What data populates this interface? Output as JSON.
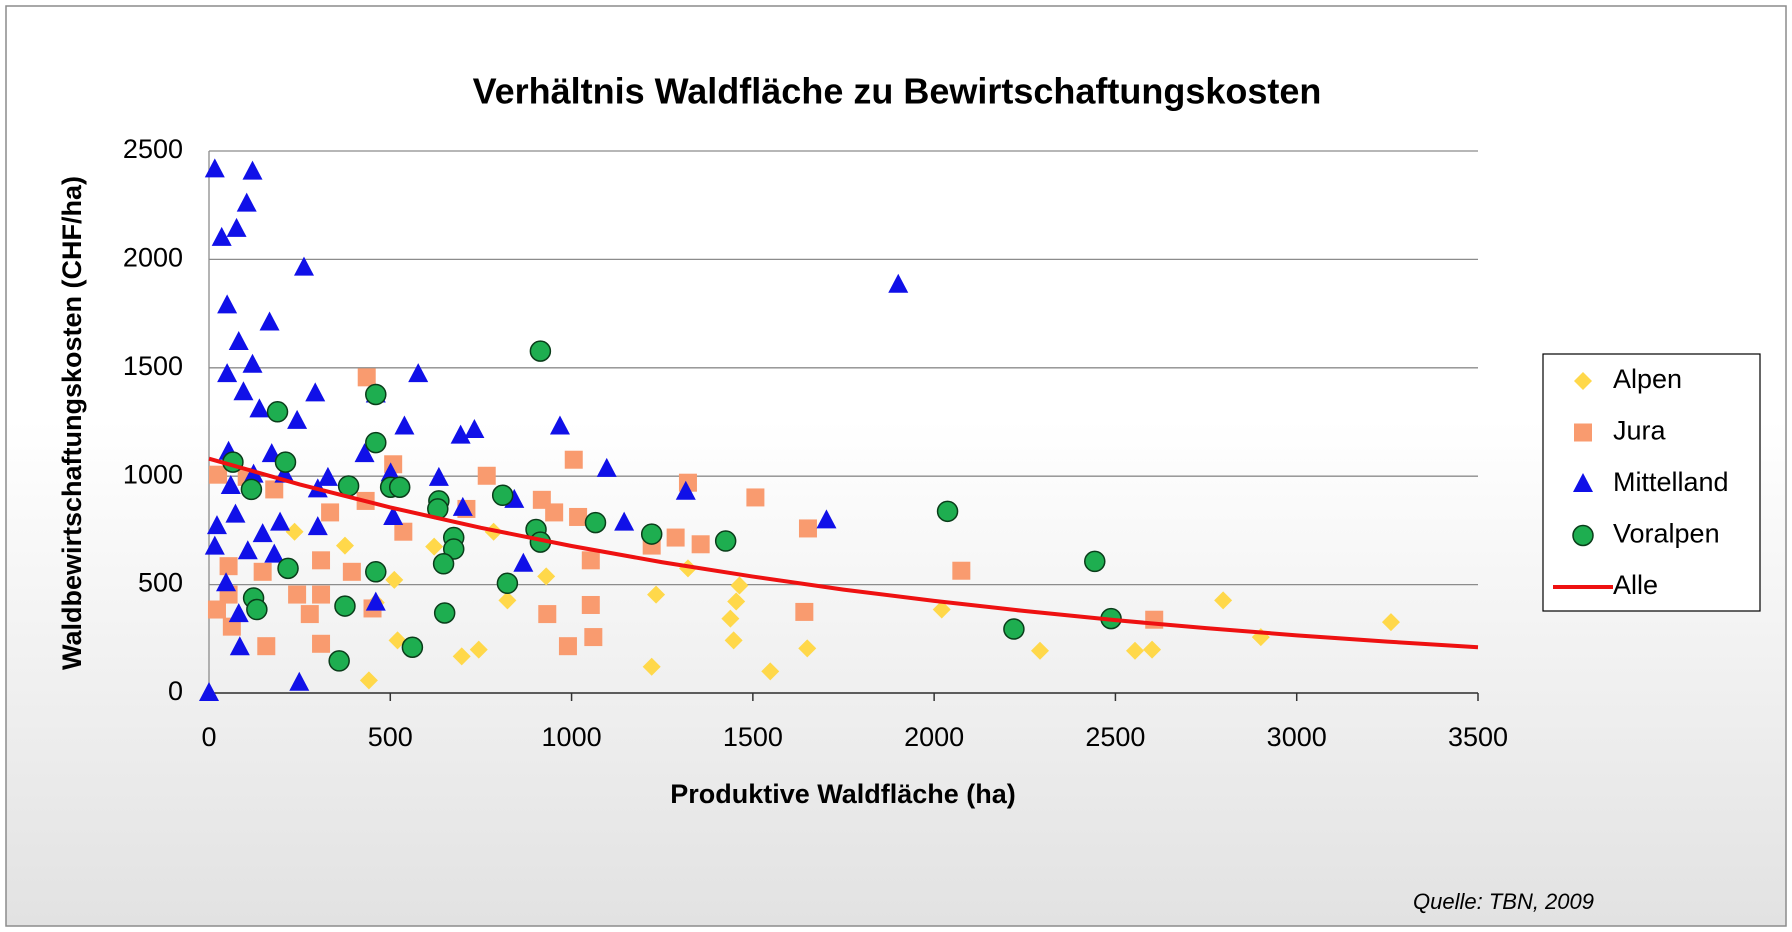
{
  "chart_data": {
    "type": "scatter",
    "title": "Verhältnis Waldfläche zu Bewirtschaftungskosten",
    "x_label": "Produktive Waldfläche (ha)",
    "y_label": "Waldbewirtschaftungskosten (CHF/ha)",
    "annotation": "Quelle: TBN, 2009",
    "xlim": [
      0,
      3500
    ],
    "xticks": [
      0,
      500,
      1000,
      1500,
      2000,
      2500,
      3000,
      3500
    ],
    "ylim": [
      0,
      2500
    ],
    "yticks": [
      0,
      500,
      1000,
      1500,
      2000,
      2500
    ],
    "grid": true,
    "legend": "right",
    "series": [
      {
        "name": "Alpen",
        "color": "#ffd84a",
        "marker": "diamond",
        "x": [
          375,
          460,
          511,
          785,
          823,
          930,
          1321,
          1233,
          1454,
          1438,
          1463,
          1447,
          1548,
          1650,
          1221,
          441,
          520,
          697,
          744,
          2021,
          2292,
          2554,
          2601,
          2797,
          2901,
          3260,
          236,
          621
        ],
        "values": [
          680,
          417,
          522,
          744,
          427,
          538,
          575,
          454,
          422,
          343,
          496,
          243,
          100,
          206,
          121,
          58,
          243,
          169,
          200,
          385,
          195,
          195,
          200,
          427,
          258,
          327,
          744,
          675
        ]
      },
      {
        "name": "Jura",
        "color": "#f99b6f",
        "marker": "square",
        "x": [
          435,
          25,
          104,
          508,
          766,
          1006,
          1321,
          1507,
          180,
          334,
          432,
          918,
          952,
          1018,
          710,
          536,
          1287,
          1356,
          1652,
          1221,
          1053,
          309,
          394,
          309,
          54,
          148,
          243,
          54,
          2075,
          1053,
          451,
          22,
          278,
          933,
          1642,
          1060,
          990,
          309,
          158,
          2607,
          63
        ],
        "values": [
          1456,
          1007,
          997,
          1055,
          1002,
          1076,
          970,
          902,
          939,
          833,
          886,
          891,
          833,
          812,
          849,
          744,
          717,
          686,
          759,
          680,
          612,
          612,
          559,
          454,
          585,
          559,
          454,
          454,
          564,
          406,
          390,
          385,
          364,
          364,
          374,
          258,
          216,
          227,
          216,
          338,
          306
        ]
      },
      {
        "name": "Mittelland",
        "color": "#1010e8",
        "marker": "triangle",
        "x": [
          16,
          35,
          76,
          104,
          120,
          262,
          1901,
          50,
          167,
          82,
          50,
          120,
          577,
          95,
          139,
          293,
          460,
          243,
          968,
          539,
          694,
          732,
          54,
          173,
          429,
          1097,
          60,
          123,
          208,
          328,
          501,
          634,
          300,
          1315,
          842,
          22,
          196,
          300,
          1145,
          1703,
          148,
          73,
          508,
          700,
          16,
          107,
          180,
          867,
          47,
          460,
          82,
          85,
          249,
          0
        ],
        "values": [
          2415,
          2099,
          2141,
          2257,
          2405,
          1962,
          1883,
          1788,
          1709,
          1619,
          1471,
          1514,
          1471,
          1387,
          1308,
          1382,
          1377,
          1255,
          1229,
          1229,
          1187,
          1213,
          1113,
          1102,
          1102,
          1034,
          955,
          1007,
          1007,
          992,
          1013,
          992,
          939,
          928,
          891,
          770,
          786,
          765,
          786,
          796,
          733,
          823,
          812,
          854,
          675,
          654,
          638,
          596,
          506,
          417,
          364,
          211,
          47,
          0
        ]
      },
      {
        "name": "Voralpen",
        "color": "#1eae50",
        "marker": "circle",
        "x": [
          914,
          189,
          460,
          460,
          66,
          211,
          117,
          385,
          501,
          526,
          634,
          810,
          902,
          914,
          1066,
          1221,
          1425,
          2037,
          675,
          675,
          647,
          218,
          460,
          823,
          123,
          132,
          375,
          650,
          561,
          359,
          2443,
          2220,
          2488,
          631
        ],
        "values": [
          1577,
          1297,
          1377,
          1155,
          1065,
          1065,
          939,
          955,
          949,
          949,
          886,
          912,
          754,
          696,
          786,
          733,
          701,
          838,
          717,
          664,
          596,
          575,
          559,
          506,
          438,
          385,
          401,
          369,
          211,
          148,
          607,
          295,
          343,
          849
        ]
      },
      {
        "name": "Alle",
        "color": "#ee1111",
        "marker": "line",
        "x": [
          0,
          250,
          500,
          750,
          1000,
          1250,
          1500,
          1750,
          2000,
          2250,
          2500,
          2750,
          3000,
          3250,
          3500
        ],
        "values": [
          1081,
          962,
          856,
          762,
          678,
          603,
          537,
          477,
          425,
          378,
          336,
          299,
          266,
          237,
          211
        ]
      }
    ]
  }
}
